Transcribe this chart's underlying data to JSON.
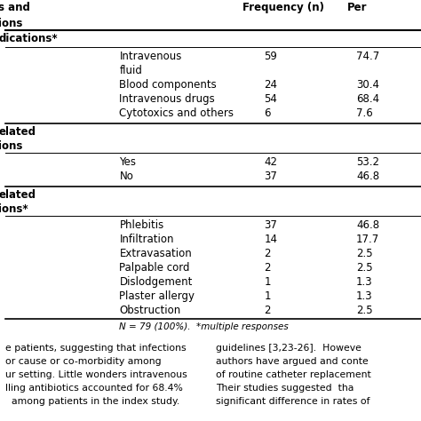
{
  "bg_color": "#ffffff",
  "text_color": "#000000",
  "header_fontsize": 8.5,
  "body_fontsize": 8.5,
  "footnote_fontsize": 7.5,
  "sections": [
    {
      "section_line1": "s and",
      "section_line2": "ions",
      "section_bold_line1": "dications*",
      "rows": [
        {
          "label": "Intravenous",
          "label2": "fluid",
          "freq": "59",
          "pct": "74.7"
        },
        {
          "label": "Blood components",
          "label2": null,
          "freq": "24",
          "pct": "30.4"
        },
        {
          "label": "Intravenous drugs",
          "label2": null,
          "freq": "54",
          "pct": "68.4"
        },
        {
          "label": "Cytotoxics and others",
          "label2": null,
          "freq": "6",
          "pct": "7.6"
        }
      ]
    },
    {
      "section_bold_line1": "elated",
      "section_bold_line2": "ions",
      "rows": [
        {
          "label": "Yes",
          "label2": null,
          "freq": "42",
          "pct": "53.2"
        },
        {
          "label": "No",
          "label2": null,
          "freq": "37",
          "pct": "46.8"
        }
      ]
    },
    {
      "section_bold_line1": "elated",
      "section_bold_line2": "ions*",
      "rows": [
        {
          "label": "Phlebitis",
          "label2": null,
          "freq": "37",
          "pct": "46.8"
        },
        {
          "label": "Infiltration",
          "label2": null,
          "freq": "14",
          "pct": "17.7"
        },
        {
          "label": "Extravasation",
          "label2": null,
          "freq": "2",
          "pct": "2.5"
        },
        {
          "label": "Palpable cord",
          "label2": null,
          "freq": "2",
          "pct": "2.5"
        },
        {
          "label": "Dislodgement",
          "label2": null,
          "freq": "1",
          "pct": "1.3"
        },
        {
          "label": "Plaster allergy",
          "label2": null,
          "freq": "1",
          "pct": "1.3"
        },
        {
          "label": "Obstruction",
          "label2": null,
          "freq": "2",
          "pct": "2.5"
        }
      ]
    }
  ],
  "footnote": "N = 79 (100%).  *multiple responses",
  "col_freq_header": "Frequency (n)",
  "col_pct_header": "Per",
  "paragraph1_lines": [
    "e patients, suggesting that infections",
    "or cause or co-morbidity among",
    "ur setting. Little wonders intravenous",
    "lling antibiotics accounted for 68.4%",
    "  among patients in the index study."
  ],
  "paragraph2_lines": [
    "guidelines [3,23-26].  Howeve",
    "authors have argued and conte",
    "of routine catheter replacement",
    "Their studies suggested  tha",
    "significant difference in rates of"
  ]
}
